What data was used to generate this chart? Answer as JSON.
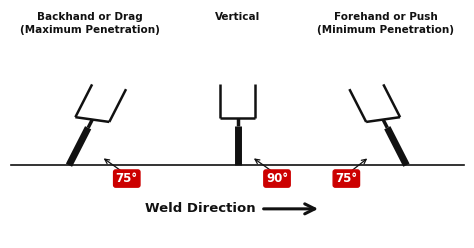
{
  "bg_color": "#ffffff",
  "title_left": "Backhand or Drag\n(Maximum Penetration)",
  "title_center": "Vertical",
  "title_right": "Forehand or Push\n(Minimum Penetration)",
  "angle_left": "75°",
  "angle_center": "90°",
  "angle_right": "75°",
  "weld_direction": "Weld Direction",
  "line_color": "#111111",
  "red_color": "#cc0000",
  "text_color": "#111111",
  "fig_width": 4.74,
  "fig_height": 2.48,
  "dpi": 100
}
